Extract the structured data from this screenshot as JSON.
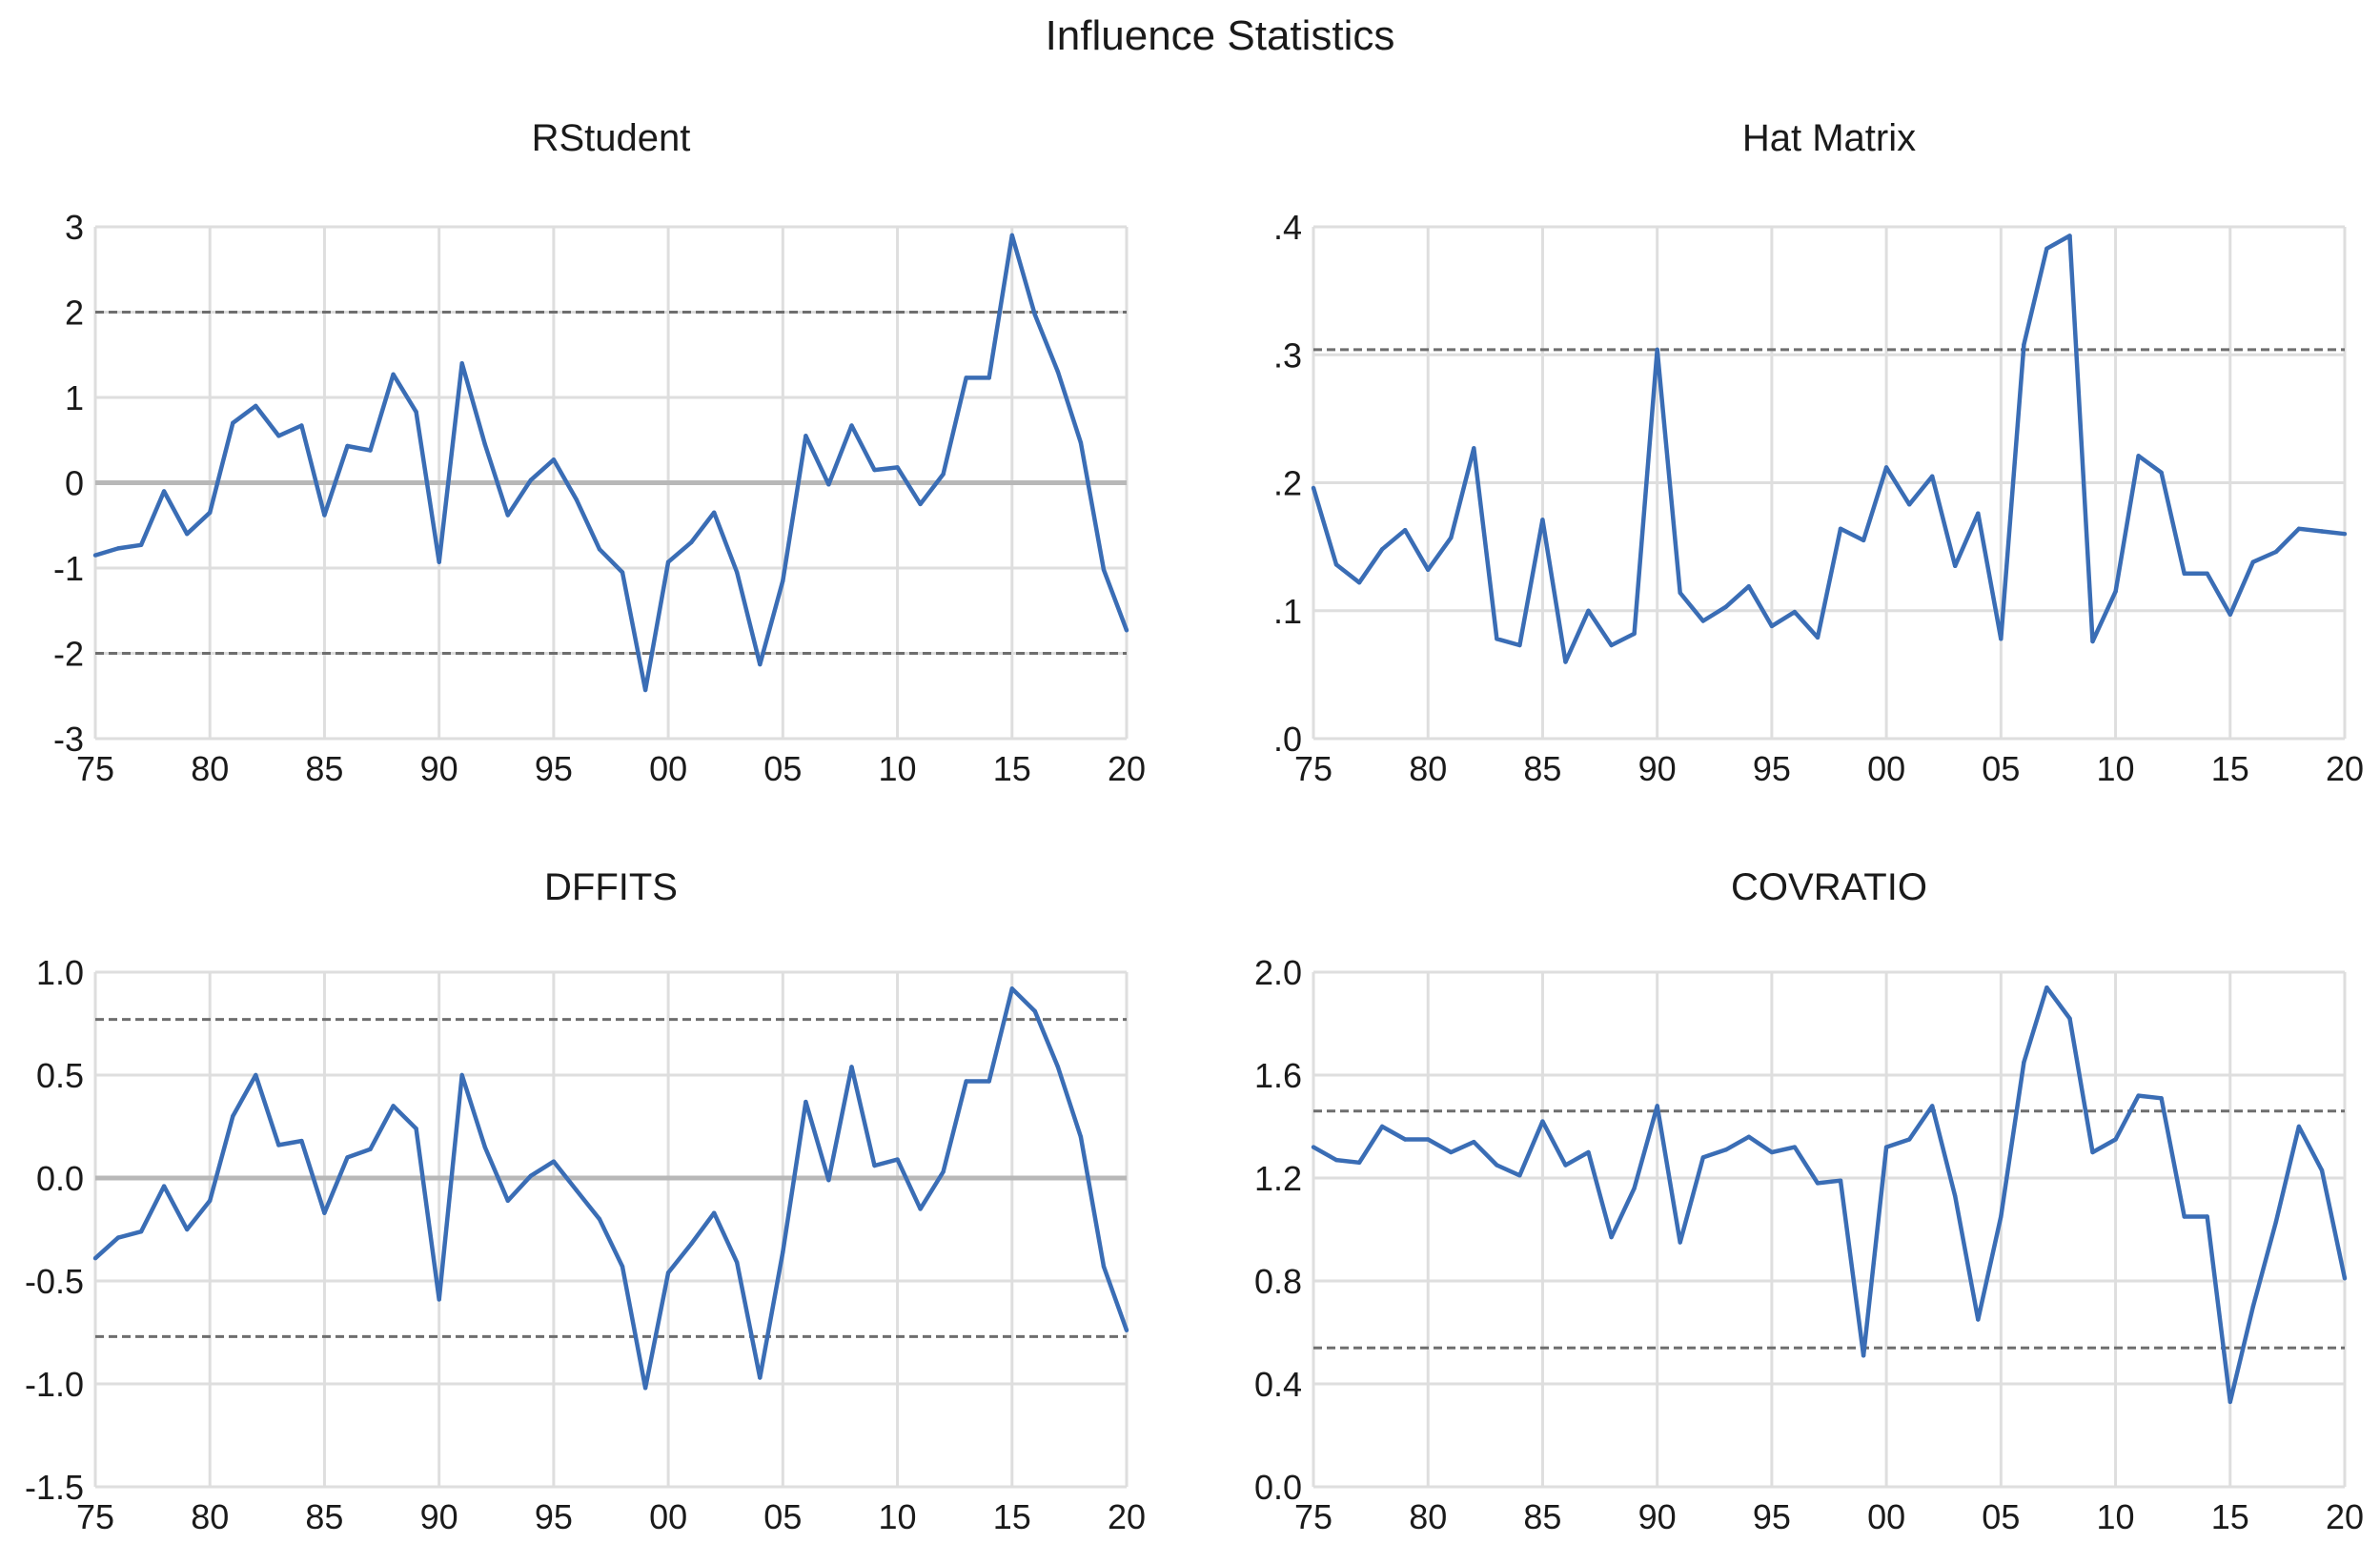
{
  "figure_title": "Influence Statistics",
  "colors": {
    "series": "#3a6db5",
    "grid": "#dedede",
    "zero": "#b8b8b8",
    "ref": "#6e6e6e",
    "text": "#1a1a1a"
  },
  "chart_data": [
    {
      "type": "line",
      "title": "RStudent",
      "xlim": [
        1975,
        2020
      ],
      "x_tick_values": [
        1975,
        1980,
        1985,
        1990,
        1995,
        2000,
        2005,
        2010,
        2015,
        2020
      ],
      "x_tick_labels": [
        "75",
        "80",
        "85",
        "90",
        "95",
        "00",
        "05",
        "10",
        "15",
        "20"
      ],
      "ylim": [
        -3,
        3
      ],
      "y_tick_values": [
        -3,
        -2,
        -1,
        0,
        1,
        2,
        3
      ],
      "y_tick_labels": [
        "-3",
        "-2",
        "-1",
        "0",
        "1",
        "2",
        "3"
      ],
      "zero_line": true,
      "reference_lines": [
        2,
        -2
      ],
      "x": [
        1975,
        1976,
        1977,
        1978,
        1979,
        1980,
        1981,
        1982,
        1983,
        1984,
        1985,
        1986,
        1987,
        1988,
        1989,
        1990,
        1991,
        1992,
        1993,
        1994,
        1995,
        1996,
        1997,
        1998,
        1999,
        2000,
        2001,
        2002,
        2003,
        2004,
        2005,
        2006,
        2007,
        2008,
        2009,
        2010,
        2011,
        2012,
        2013,
        2014,
        2015,
        2016,
        2017,
        2018,
        2019,
        2020
      ],
      "values": [
        -0.85,
        -0.77,
        -0.73,
        -0.1,
        -0.6,
        -0.35,
        0.7,
        0.9,
        0.55,
        0.67,
        -0.38,
        0.43,
        0.38,
        1.27,
        0.83,
        -0.93,
        1.4,
        0.45,
        -0.38,
        0.03,
        0.27,
        -0.2,
        -0.78,
        -1.05,
        -2.43,
        -0.93,
        -0.7,
        -0.35,
        -1.05,
        -2.13,
        -1.15,
        0.55,
        -0.02,
        0.67,
        0.15,
        0.18,
        -0.25,
        0.1,
        1.23,
        1.23,
        2.9,
        1.97,
        1.3,
        0.47,
        -1.02,
        -1.73
      ]
    },
    {
      "type": "line",
      "title": "Hat Matrix",
      "xlim": [
        1975,
        2020
      ],
      "x_tick_values": [
        1975,
        1980,
        1985,
        1990,
        1995,
        2000,
        2005,
        2010,
        2015,
        2020
      ],
      "x_tick_labels": [
        "75",
        "80",
        "85",
        "90",
        "95",
        "00",
        "05",
        "10",
        "15",
        "20"
      ],
      "ylim": [
        0,
        0.4
      ],
      "y_tick_values": [
        0,
        0.1,
        0.2,
        0.3,
        0.4
      ],
      "y_tick_labels": [
        ".0",
        ".1",
        ".2",
        ".3",
        ".4"
      ],
      "zero_line": false,
      "reference_lines": [
        0.304
      ],
      "x": [
        1975,
        1976,
        1977,
        1978,
        1979,
        1980,
        1981,
        1982,
        1983,
        1984,
        1985,
        1986,
        1987,
        1988,
        1989,
        1990,
        1991,
        1992,
        1993,
        1994,
        1995,
        1996,
        1997,
        1998,
        1999,
        2000,
        2001,
        2002,
        2003,
        2004,
        2005,
        2006,
        2007,
        2008,
        2009,
        2010,
        2011,
        2012,
        2013,
        2014,
        2015,
        2016,
        2017,
        2018,
        2019,
        2020
      ],
      "values": [
        0.196,
        0.136,
        0.122,
        0.148,
        0.163,
        0.132,
        0.157,
        0.227,
        0.078,
        0.073,
        0.171,
        0.06,
        0.1,
        0.073,
        0.082,
        0.304,
        0.114,
        0.092,
        0.103,
        0.119,
        0.088,
        0.099,
        0.079,
        0.164,
        0.155,
        0.212,
        0.183,
        0.205,
        0.135,
        0.176,
        0.078,
        0.308,
        0.383,
        0.393,
        0.076,
        0.115,
        0.221,
        0.208,
        0.129,
        0.129,
        0.097,
        0.138,
        0.146,
        0.164,
        0.162,
        0.16
      ]
    },
    {
      "type": "line",
      "title": "DFFITS",
      "xlim": [
        1975,
        2020
      ],
      "x_tick_values": [
        1975,
        1980,
        1985,
        1990,
        1995,
        2000,
        2005,
        2010,
        2015,
        2020
      ],
      "x_tick_labels": [
        "75",
        "80",
        "85",
        "90",
        "95",
        "00",
        "05",
        "10",
        "15",
        "20"
      ],
      "ylim": [
        -1.5,
        1.0
      ],
      "y_tick_values": [
        -1.5,
        -1.0,
        -0.5,
        0.0,
        0.5,
        1.0
      ],
      "y_tick_labels": [
        "-1.5",
        "-1.0",
        "-0.5",
        "0.0",
        "0.5",
        "1.0"
      ],
      "zero_line": true,
      "reference_lines": [
        0.77,
        -0.77
      ],
      "x": [
        1975,
        1976,
        1977,
        1978,
        1979,
        1980,
        1981,
        1982,
        1983,
        1984,
        1985,
        1986,
        1987,
        1988,
        1989,
        1990,
        1991,
        1992,
        1993,
        1994,
        1995,
        1996,
        1997,
        1998,
        1999,
        2000,
        2001,
        2002,
        2003,
        2004,
        2005,
        2006,
        2007,
        2008,
        2009,
        2010,
        2011,
        2012,
        2013,
        2014,
        2015,
        2016,
        2017,
        2018,
        2019,
        2020
      ],
      "values": [
        -0.39,
        -0.29,
        -0.26,
        -0.04,
        -0.25,
        -0.11,
        0.3,
        0.5,
        0.16,
        0.18,
        -0.17,
        0.1,
        0.14,
        0.35,
        0.24,
        -0.59,
        0.5,
        0.15,
        -0.11,
        0.01,
        0.08,
        -0.06,
        -0.2,
        -0.43,
        -1.02,
        -0.46,
        -0.32,
        -0.17,
        -0.41,
        -0.97,
        -0.36,
        0.37,
        -0.01,
        0.54,
        0.06,
        0.09,
        -0.15,
        0.03,
        0.47,
        0.47,
        0.92,
        0.81,
        0.54,
        0.2,
        -0.43,
        -0.74
      ]
    },
    {
      "type": "line",
      "title": "COVRATIO",
      "xlim": [
        1975,
        2020
      ],
      "x_tick_values": [
        1975,
        1980,
        1985,
        1990,
        1995,
        2000,
        2005,
        2010,
        2015,
        2020
      ],
      "x_tick_labels": [
        "75",
        "80",
        "85",
        "90",
        "95",
        "00",
        "05",
        "10",
        "15",
        "20"
      ],
      "ylim": [
        0,
        2.0
      ],
      "y_tick_values": [
        0,
        0.4,
        0.8,
        1.2,
        1.6,
        2.0
      ],
      "y_tick_labels": [
        "0.0",
        "0.4",
        "0.8",
        "1.2",
        "1.6",
        "2.0"
      ],
      "zero_line": false,
      "reference_lines": [
        1.46,
        0.54
      ],
      "x": [
        1975,
        1976,
        1977,
        1978,
        1979,
        1980,
        1981,
        1982,
        1983,
        1984,
        1985,
        1986,
        1987,
        1988,
        1989,
        1990,
        1991,
        1992,
        1993,
        1994,
        1995,
        1996,
        1997,
        1998,
        1999,
        2000,
        2001,
        2002,
        2003,
        2004,
        2005,
        2006,
        2007,
        2008,
        2009,
        2010,
        2011,
        2012,
        2013,
        2014,
        2015,
        2016,
        2017,
        2018,
        2019,
        2020
      ],
      "values": [
        1.32,
        1.27,
        1.26,
        1.4,
        1.35,
        1.35,
        1.3,
        1.34,
        1.25,
        1.21,
        1.42,
        1.25,
        1.3,
        0.97,
        1.16,
        1.48,
        0.95,
        1.28,
        1.31,
        1.36,
        1.3,
        1.32,
        1.18,
        1.19,
        0.51,
        1.32,
        1.35,
        1.48,
        1.13,
        0.65,
        1.05,
        1.65,
        1.94,
        1.82,
        1.3,
        1.35,
        1.52,
        1.51,
        1.05,
        1.05,
        0.33,
        0.7,
        1.03,
        1.4,
        1.23,
        0.81
      ]
    }
  ]
}
